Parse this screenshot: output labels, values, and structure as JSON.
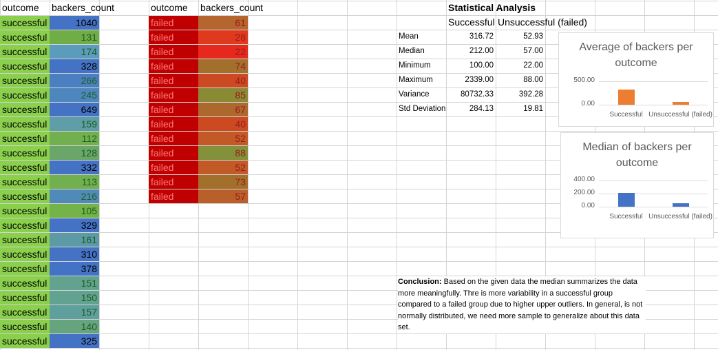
{
  "table1": {
    "headers": [
      "outcome",
      "backers_count"
    ],
    "rows": [
      [
        "successful",
        "1040",
        "#4472c4"
      ],
      [
        "successful",
        "131",
        "#70ad47"
      ],
      [
        "successful",
        "174",
        "#5b9bbb"
      ],
      [
        "successful",
        "328",
        "#4472c4"
      ],
      [
        "successful",
        "266",
        "#4a7fc1"
      ],
      [
        "successful",
        "245",
        "#4e86be"
      ],
      [
        "successful",
        "649",
        "#4472c4"
      ],
      [
        "successful",
        "159",
        "#5e9ea8"
      ],
      [
        "successful",
        "112",
        "#72b04f"
      ],
      [
        "successful",
        "128",
        "#6aa66a"
      ],
      [
        "successful",
        "332",
        "#4472c4"
      ],
      [
        "successful",
        "113",
        "#72b04f"
      ],
      [
        "successful",
        "216",
        "#4f8ab8"
      ],
      [
        "successful",
        "105",
        "#74b347"
      ],
      [
        "successful",
        "329",
        "#4472c4"
      ],
      [
        "successful",
        "161",
        "#5c9aa6"
      ],
      [
        "successful",
        "310",
        "#4472c4"
      ],
      [
        "successful",
        "378",
        "#4472c4"
      ],
      [
        "successful",
        "151",
        "#62a28f"
      ],
      [
        "successful",
        "150",
        "#62a290"
      ],
      [
        "successful",
        "157",
        "#5f9f9d"
      ],
      [
        "successful",
        "140",
        "#66a480"
      ],
      [
        "successful",
        "325",
        "#4472c4"
      ]
    ]
  },
  "table2": {
    "headers": [
      "outcome",
      "backers_count"
    ],
    "rows": [
      [
        "failed",
        "61",
        "#b5652e"
      ],
      [
        "failed",
        "28",
        "#df3a1e"
      ],
      [
        "failed",
        "22",
        "#e6291c"
      ],
      [
        "failed",
        "74",
        "#a26f2c"
      ],
      [
        "failed",
        "40",
        "#cc4a22"
      ],
      [
        "failed",
        "85",
        "#8a8a34"
      ],
      [
        "failed",
        "67",
        "#ad682e"
      ],
      [
        "failed",
        "40",
        "#cc4a22"
      ],
      [
        "failed",
        "52",
        "#c25a28"
      ],
      [
        "failed",
        "88",
        "#83923a"
      ],
      [
        "failed",
        "52",
        "#c25a28"
      ],
      [
        "failed",
        "73",
        "#a3702c"
      ],
      [
        "failed",
        "57",
        "#b9602a"
      ]
    ]
  },
  "stats": {
    "title": "Statistical Analysis",
    "col_successful": "Successful",
    "col_failed": "Unsuccessful (failed)",
    "rows": [
      {
        "label": "Mean",
        "s": "316.72",
        "f": "52.93"
      },
      {
        "label": "Median",
        "s": "212.00",
        "f": "57.00"
      },
      {
        "label": "Minimum",
        "s": "100.00",
        "f": "22.00"
      },
      {
        "label": "Maximum",
        "s": "2339.00",
        "f": "88.00"
      },
      {
        "label": "Variance",
        "s": "80732.33",
        "f": "392.28"
      },
      {
        "label": "Std Deviation",
        "s": "284.13",
        "f": "19.81"
      }
    ]
  },
  "chart_data": [
    {
      "type": "bar",
      "title": "Average of backers per outcome",
      "categories": [
        "Successful",
        "Unsuccessful (failed)"
      ],
      "values": [
        316.72,
        52.93
      ],
      "colors": [
        "#ed7d31",
        "#ed7d31"
      ],
      "yticks": [
        "500.00",
        "0.00"
      ],
      "ylim": [
        0,
        500
      ]
    },
    {
      "type": "bar",
      "title": "Median of backers per outcome",
      "categories": [
        "Successful",
        "Unsuccessful (failed)"
      ],
      "values": [
        212,
        57
      ],
      "colors": [
        "#4472c4",
        "#4472c4"
      ],
      "yticks": [
        "400.00",
        "200.00",
        "0.00"
      ],
      "ylim": [
        0,
        400
      ]
    }
  ],
  "conclusion": {
    "label": "Conclusion:",
    "text": " Based on the given data the median summarizes the data more meaningfully. Thre is more variability in a successful group compared to a failed group due to higher upper outliers. In general, is not normally distributed, we need more sample to generalize about this data set."
  },
  "colors": {
    "success_fill": "#8bd04c",
    "failed_fill": "#c00000",
    "grid": "#d4d4d4"
  }
}
